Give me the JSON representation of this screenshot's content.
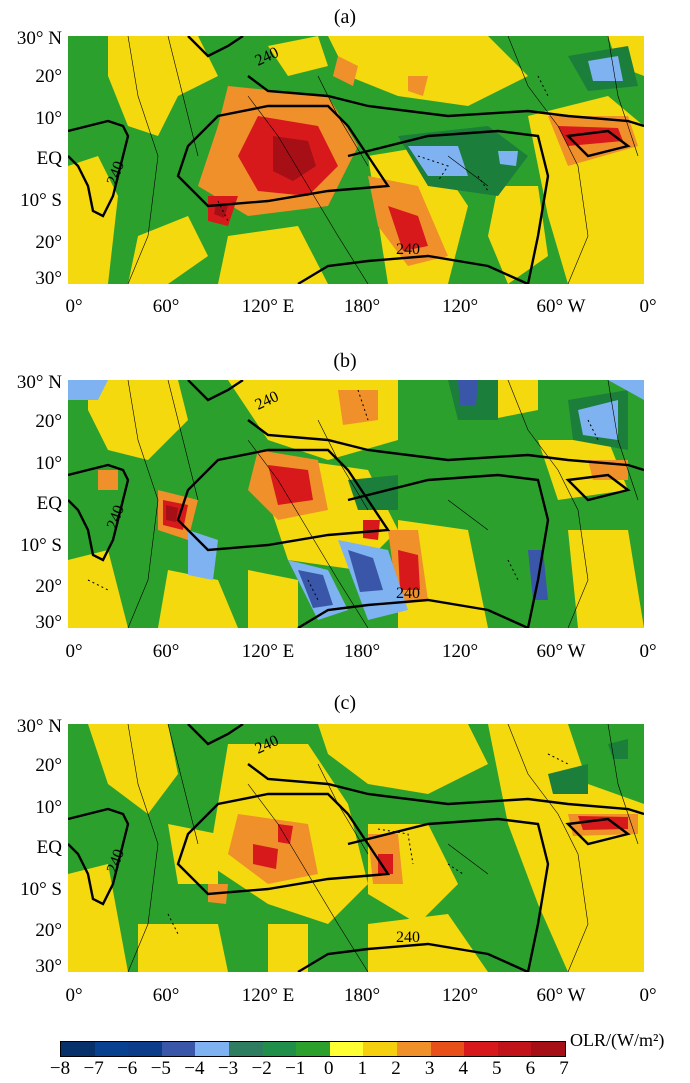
{
  "panels": [
    {
      "label": "(a)",
      "contour_label": "240"
    },
    {
      "label": "(b)",
      "contour_label": "240"
    },
    {
      "label": "(c)",
      "contour_label": "240"
    }
  ],
  "y_ticks": [
    "30° N",
    "20°",
    "10°",
    "EQ",
    "10° S",
    "20°",
    "30°"
  ],
  "x_ticks": [
    "0°",
    "60°",
    "120° E",
    "180°",
    "120°",
    "60° W",
    "0°"
  ],
  "colorbar": {
    "labels": [
      "−8",
      "−7",
      "−6",
      "−5",
      "−4",
      "−3",
      "−2",
      "−1",
      "0",
      "1",
      "2",
      "3",
      "4",
      "5",
      "6",
      "7"
    ],
    "colors": [
      "#08306b",
      "#08418f",
      "#0c3d8a",
      "#3a56a8",
      "#7fb2f0",
      "#2f7d60",
      "#1f8f4a",
      "#2ca02c",
      "#ffff33",
      "#f5d00f",
      "#f0902a",
      "#e8501a",
      "#d7191c",
      "#c0141a",
      "#a50f15"
    ],
    "unit_label": "OLR/(W/m²)"
  },
  "colors": {
    "green": "#2ca02c",
    "darkgreen": "#1b7e3a",
    "yellow": "#f5d90f",
    "lightyellow": "#ffff33",
    "orange": "#f0902a",
    "red": "#d7191c",
    "darkred": "#a50f15",
    "lightblue": "#7fb2f0",
    "blue": "#3a56a8"
  }
}
